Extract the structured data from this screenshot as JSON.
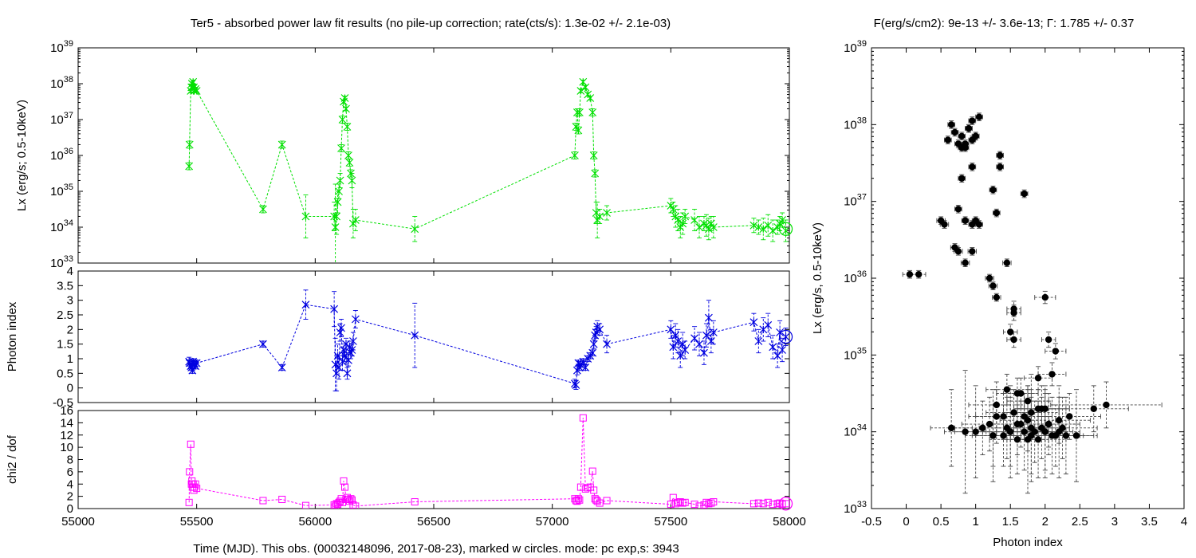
{
  "left_title": "Ter5  - absorbed power law fit results (no pile-up correction; rate(cts/s): 1.3e-02 +/- 2.1e-03)",
  "right_title_prefix": "F(erg/s/cm2): 9e-13 +/- 3.6e-13; ",
  "right_title_gamma": "Γ",
  "right_title_suffix": ": 1.785 +/- 0.37",
  "x_axis_label": "Time (MJD). This obs. (00032148096, 2017-08-23), marked w circles. mode: pc exp,s: 3943",
  "chart_data": [
    {
      "id": "lx-vs-time",
      "type": "line",
      "color": "#00e000",
      "marker": "x-star",
      "ylabel": "Lx (erg/s; 0.5-10keV)",
      "xlim": [
        55000,
        58000
      ],
      "ylim_log10": [
        33,
        39
      ],
      "y_scale": "log",
      "x_ticks": [
        55000,
        55500,
        56000,
        56500,
        57000,
        57500,
        58000
      ],
      "y_ticks_log10": [
        33,
        34,
        35,
        36,
        37,
        38,
        39
      ],
      "x": [
        55468,
        55470,
        55475,
        55478,
        55480,
        55482,
        55485,
        55488,
        55490,
        55495,
        55500,
        55780,
        55860,
        55960,
        56080,
        56085,
        56090,
        56095,
        56100,
        56105,
        56110,
        56115,
        56120,
        56125,
        56130,
        56135,
        56140,
        56145,
        56150,
        56155,
        56160,
        56170,
        56420,
        57095,
        57100,
        57105,
        57110,
        57115,
        57120,
        57130,
        57140,
        57150,
        57160,
        57170,
        57175,
        57180,
        57185,
        57190,
        57200,
        57230,
        57500,
        57510,
        57520,
        57530,
        57540,
        57550,
        57560,
        57600,
        57620,
        57640,
        57650,
        57660,
        57670,
        57680,
        57850,
        57870,
        57890,
        57910,
        57930,
        57950,
        57960,
        57970,
        57985
      ],
      "y_log10": [
        35.7,
        36.3,
        37.8,
        37.9,
        38.0,
        37.9,
        38.05,
        37.9,
        37.8,
        37.85,
        37.8,
        34.5,
        36.3,
        34.3,
        34.3,
        34.0,
        34.3,
        34.7,
        35.0,
        35.3,
        36.2,
        37.0,
        37.5,
        37.6,
        37.3,
        36.8,
        36.0,
        35.8,
        35.5,
        35.3,
        34.1,
        34.2,
        33.95,
        36.0,
        36.8,
        37.2,
        36.7,
        37.2,
        37.8,
        38.05,
        37.9,
        37.7,
        37.6,
        37.2,
        36.0,
        35.5,
        34.4,
        34.2,
        34.3,
        34.4,
        34.6,
        34.5,
        34.3,
        34.2,
        34.0,
        34.1,
        34.3,
        34.2,
        34.0,
        34.1,
        34.05,
        33.95,
        34.1,
        34.0,
        34.05,
        34.0,
        33.95,
        34.05,
        33.9,
        34.0,
        34.1,
        34.2,
        33.9
      ],
      "y_err_log10": [
        0.1,
        0.1,
        0.05,
        0.05,
        0.05,
        0.05,
        0.05,
        0.05,
        0.05,
        0.05,
        0.05,
        0.1,
        0.1,
        0.6,
        0.4,
        1.2,
        0.5,
        0.3,
        0.2,
        0.2,
        0.1,
        0.1,
        0.05,
        0.05,
        0.05,
        0.1,
        0.1,
        0.1,
        0.1,
        0.2,
        0.4,
        0.3,
        0.35,
        0.1,
        0.1,
        0.1,
        0.1,
        0.1,
        0.05,
        0.05,
        0.05,
        0.05,
        0.05,
        0.1,
        0.1,
        0.1,
        0.3,
        0.5,
        0.2,
        0.2,
        0.2,
        0.2,
        0.3,
        0.3,
        0.3,
        0.3,
        0.2,
        0.3,
        0.3,
        0.2,
        0.3,
        0.3,
        0.2,
        0.3,
        0.2,
        0.2,
        0.3,
        0.3,
        0.3,
        0.2,
        0.2,
        0.2,
        0.3
      ],
      "current_obs": {
        "x": 57985,
        "y_log10": 33.95
      }
    },
    {
      "id": "photon-index-vs-time",
      "type": "line",
      "color": "#0000e0",
      "marker": "x-star",
      "ylabel": "Photon index",
      "xlim": [
        55000,
        58000
      ],
      "ylim": [
        -0.5,
        4
      ],
      "y_ticks": [
        -0.5,
        0,
        0.5,
        1,
        1.5,
        2,
        2.5,
        3,
        3.5,
        4
      ],
      "x": [
        55468,
        55470,
        55475,
        55478,
        55480,
        55482,
        55485,
        55488,
        55490,
        55495,
        55500,
        55780,
        55860,
        55960,
        56080,
        56085,
        56090,
        56095,
        56100,
        56105,
        56110,
        56115,
        56120,
        56125,
        56130,
        56135,
        56140,
        56145,
        56150,
        56155,
        56160,
        56170,
        56420,
        57095,
        57100,
        57105,
        57110,
        57115,
        57120,
        57130,
        57140,
        57150,
        57160,
        57170,
        57175,
        57180,
        57185,
        57190,
        57200,
        57230,
        57500,
        57510,
        57520,
        57530,
        57540,
        57550,
        57560,
        57600,
        57620,
        57640,
        57650,
        57660,
        57670,
        57680,
        57850,
        57870,
        57890,
        57910,
        57930,
        57950,
        57960,
        57970,
        57985
      ],
      "y": [
        0.9,
        0.85,
        0.75,
        0.7,
        0.8,
        0.6,
        0.9,
        0.85,
        0.8,
        0.75,
        0.85,
        1.5,
        0.7,
        2.85,
        2.7,
        0.8,
        0.5,
        1.1,
        0.7,
        1.9,
        2.05,
        0.9,
        1.3,
        1.1,
        1.5,
        0.5,
        0.95,
        1.4,
        1.2,
        1.3,
        1.6,
        2.35,
        1.8,
        0.15,
        0.1,
        0.6,
        0.85,
        0.7,
        0.8,
        0.9,
        0.7,
        1.0,
        1.1,
        1.2,
        1.5,
        1.8,
        1.9,
        2.1,
        2.0,
        1.5,
        2.0,
        1.4,
        1.8,
        1.6,
        1.1,
        1.5,
        1.3,
        1.7,
        1.5,
        1.2,
        1.8,
        2.4,
        1.6,
        1.9,
        2.25,
        1.6,
        2.0,
        2.15,
        1.4,
        1.1,
        1.9,
        1.3,
        1.75
      ],
      "y_err": [
        0.15,
        0.1,
        0.1,
        0.1,
        0.1,
        0.1,
        0.1,
        0.1,
        0.1,
        0.1,
        0.1,
        0.1,
        0.1,
        0.5,
        0.6,
        0.9,
        0.6,
        0.4,
        0.4,
        0.3,
        0.3,
        0.3,
        0.2,
        0.2,
        0.2,
        0.2,
        0.2,
        0.2,
        0.2,
        0.2,
        0.3,
        0.3,
        1.1,
        0.15,
        0.15,
        0.15,
        0.1,
        0.1,
        0.1,
        0.1,
        0.1,
        0.1,
        0.1,
        0.1,
        0.15,
        0.2,
        0.2,
        0.2,
        0.2,
        0.3,
        0.3,
        0.4,
        0.4,
        0.4,
        0.4,
        0.4,
        0.3,
        0.4,
        0.4,
        0.4,
        0.4,
        0.6,
        0.4,
        0.4,
        0.3,
        0.4,
        0.4,
        0.4,
        0.4,
        0.4,
        0.4,
        0.4,
        0.3
      ],
      "current_obs": {
        "x": 57985,
        "y": 1.75
      }
    },
    {
      "id": "chi2-vs-time",
      "type": "line",
      "color": "#ff00ff",
      "marker": "square",
      "ylabel": "chi2 / dof",
      "xlim": [
        55000,
        58000
      ],
      "ylim": [
        0,
        16
      ],
      "y_ticks": [
        0,
        2,
        4,
        6,
        8,
        10,
        12,
        14,
        16
      ],
      "x": [
        55468,
        55470,
        55475,
        55478,
        55480,
        55482,
        55485,
        55488,
        55490,
        55495,
        55500,
        55780,
        55860,
        55960,
        56080,
        56085,
        56090,
        56095,
        56100,
        56105,
        56110,
        56115,
        56120,
        56125,
        56130,
        56135,
        56140,
        56145,
        56150,
        56155,
        56160,
        56170,
        56420,
        57095,
        57100,
        57105,
        57110,
        57115,
        57120,
        57130,
        57140,
        57150,
        57160,
        57170,
        57175,
        57180,
        57185,
        57190,
        57200,
        57230,
        57500,
        57510,
        57520,
        57530,
        57540,
        57550,
        57560,
        57600,
        57620,
        57640,
        57650,
        57660,
        57670,
        57680,
        57850,
        57870,
        57890,
        57910,
        57930,
        57950,
        57960,
        57970,
        57985
      ],
      "y": [
        1.0,
        6.0,
        10.5,
        4.0,
        4.5,
        3.5,
        4.0,
        3.0,
        3.5,
        4.0,
        3.3,
        1.3,
        1.5,
        0.5,
        0.6,
        0.4,
        0.8,
        0.7,
        1.0,
        1.2,
        1.6,
        1.0,
        4.5,
        3.5,
        1.5,
        1.8,
        1.5,
        1.2,
        1.6,
        1.4,
        0.6,
        0.4,
        1.1,
        1.6,
        1.3,
        1.2,
        1.6,
        1.4,
        3.5,
        14.8,
        3.2,
        3.4,
        3.5,
        6.1,
        3.0,
        1.6,
        1.4,
        1.2,
        0.9,
        1.3,
        0.7,
        1.8,
        0.8,
        1.0,
        1.1,
        0.9,
        1.0,
        0.7,
        0.4,
        0.6,
        1.0,
        0.8,
        0.9,
        1.1,
        0.8,
        0.9,
        0.8,
        1.0,
        0.7,
        0.8,
        0.9,
        0.7,
        0.8
      ],
      "current_obs": {
        "x": 57985,
        "y": 0.8
      }
    },
    {
      "id": "lx-vs-photon-index",
      "type": "scatter",
      "color": "#000000",
      "marker": "filled-circle",
      "xlabel": "Photon index",
      "ylabel": "Lx (erg/s, 0.5-10keV)",
      "xlim": [
        -0.5,
        4
      ],
      "ylim_log10": [
        33,
        39
      ],
      "y_scale": "log",
      "x_ticks": [
        -0.5,
        0,
        0.5,
        1,
        1.5,
        2,
        2.5,
        3,
        3.5,
        4
      ],
      "y_ticks_log10": [
        33,
        34,
        35,
        36,
        37,
        38,
        39
      ],
      "x": [
        0.6,
        0.7,
        0.75,
        0.8,
        0.85,
        0.9,
        0.95,
        1.0,
        0.65,
        0.85,
        0.9,
        0.95,
        1.05,
        0.8,
        1.0,
        1.35,
        1.35,
        0.8,
        0.95,
        1.25,
        1.7,
        0.75,
        1.0,
        0.85,
        0.95,
        1.3,
        1.05,
        0.5,
        0.55,
        0.7,
        0.75,
        0.95,
        1.45,
        0.85,
        1.2,
        1.25,
        1.3,
        0.05,
        0.18,
        2.0,
        1.55,
        1.55,
        1.5,
        1.55,
        2.05,
        2.15,
        1.9,
        2.1,
        1.65,
        1.45,
        1.6,
        1.75,
        1.9,
        2.0,
        1.3,
        1.4,
        1.55,
        1.65,
        1.7,
        1.8,
        1.95,
        2.05,
        2.2,
        2.35,
        2.7,
        2.88,
        1.1,
        1.2,
        1.3,
        1.45,
        1.6,
        1.75,
        1.85,
        1.95,
        2.05,
        2.15,
        2.25,
        1.25,
        1.4,
        1.5,
        1.6,
        1.7,
        1.8,
        1.9,
        2.0,
        2.1,
        2.3,
        0.65,
        0.85,
        1.0,
        1.25,
        1.5,
        1.75,
        1.8,
        2.0,
        2.2,
        2.45
      ],
      "y_log10": [
        37.8,
        37.9,
        37.75,
        37.85,
        37.7,
        37.95,
        38.05,
        37.85,
        38.0,
        37.75,
        37.95,
        37.8,
        38.1,
        37.7,
        37.85,
        37.6,
        37.45,
        37.3,
        37.45,
        37.15,
        37.1,
        36.9,
        36.75,
        36.75,
        36.7,
        36.85,
        36.7,
        36.75,
        36.7,
        36.4,
        36.35,
        36.35,
        36.2,
        36.2,
        36.0,
        35.9,
        35.75,
        36.05,
        36.05,
        35.75,
        35.6,
        35.55,
        35.3,
        35.2,
        35.2,
        35.05,
        34.7,
        34.75,
        34.5,
        34.55,
        34.5,
        34.4,
        34.3,
        34.3,
        34.35,
        34.2,
        34.25,
        34.1,
        34.2,
        34.25,
        34.3,
        34.1,
        34.15,
        34.2,
        34.3,
        34.35,
        34.05,
        34.1,
        34.2,
        34.05,
        34.1,
        34.15,
        34.0,
        34.05,
        34.1,
        33.95,
        34.05,
        33.95,
        33.95,
        34.0,
        33.9,
        34.0,
        33.95,
        33.9,
        34.0,
        33.95,
        33.95,
        34.05,
        34.0,
        34.0,
        33.95,
        34.0,
        33.9,
        34.05,
        34.0,
        34.0,
        33.95
      ],
      "x_err": [
        0.05,
        0.05,
        0.05,
        0.05,
        0.05,
        0.05,
        0.05,
        0.05,
        0.05,
        0.05,
        0.05,
        0.05,
        0.05,
        0.05,
        0.05,
        0.05,
        0.05,
        0.05,
        0.05,
        0.05,
        0.05,
        0.05,
        0.05,
        0.05,
        0.05,
        0.05,
        0.05,
        0.06,
        0.06,
        0.06,
        0.06,
        0.06,
        0.06,
        0.06,
        0.06,
        0.06,
        0.06,
        0.1,
        0.1,
        0.15,
        0.1,
        0.1,
        0.1,
        0.1,
        0.1,
        0.15,
        0.2,
        0.2,
        0.25,
        0.3,
        0.3,
        0.3,
        0.3,
        0.3,
        0.4,
        0.4,
        0.4,
        0.4,
        0.4,
        0.4,
        0.4,
        0.45,
        0.45,
        0.45,
        0.5,
        0.8,
        0.4,
        0.4,
        0.4,
        0.4,
        0.4,
        0.4,
        0.4,
        0.4,
        0.4,
        0.4,
        0.5,
        0.4,
        0.4,
        0.4,
        0.4,
        0.4,
        0.4,
        0.4,
        0.4,
        0.4,
        0.4,
        0.3,
        0.3,
        0.3,
        0.3,
        0.3,
        0.3,
        0.3,
        0.3,
        0.3,
        0.3
      ],
      "y_err_log10": [
        0.05,
        0.05,
        0.05,
        0.05,
        0.05,
        0.05,
        0.05,
        0.05,
        0.05,
        0.05,
        0.05,
        0.05,
        0.05,
        0.05,
        0.05,
        0.05,
        0.05,
        0.05,
        0.05,
        0.05,
        0.05,
        0.05,
        0.05,
        0.05,
        0.05,
        0.05,
        0.05,
        0.05,
        0.05,
        0.05,
        0.05,
        0.05,
        0.05,
        0.05,
        0.05,
        0.05,
        0.05,
        0.05,
        0.05,
        0.08,
        0.1,
        0.1,
        0.1,
        0.1,
        0.1,
        0.1,
        0.15,
        0.15,
        0.2,
        0.2,
        0.2,
        0.2,
        0.25,
        0.25,
        0.3,
        0.3,
        0.3,
        0.3,
        0.3,
        0.3,
        0.3,
        0.3,
        0.3,
        0.3,
        0.3,
        0.3,
        0.35,
        0.35,
        0.35,
        0.4,
        0.4,
        0.4,
        0.4,
        0.4,
        0.4,
        0.4,
        0.4,
        0.4,
        0.4,
        0.45,
        0.45,
        0.5,
        0.5,
        0.5,
        0.5,
        0.5,
        0.5,
        0.5,
        0.8,
        0.6,
        0.6,
        0.6,
        0.7,
        0.7,
        0.6,
        0.6,
        0.6
      ]
    }
  ]
}
